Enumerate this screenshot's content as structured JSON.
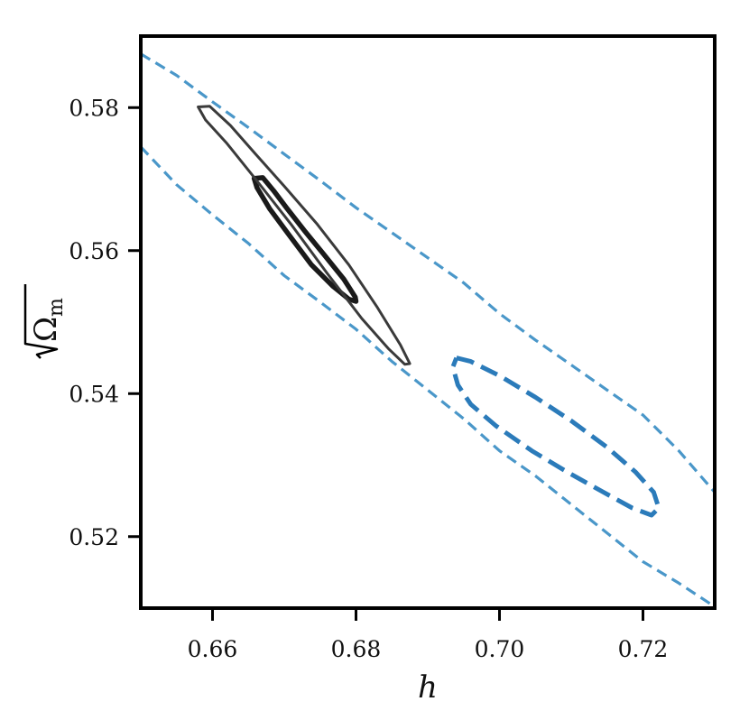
{
  "chart_data": {
    "type": "contour",
    "xlabel": "h",
    "ylabel_symbol": "Ω",
    "ylabel_subscript": "m",
    "xlim": [
      0.65,
      0.73
    ],
    "ylim": [
      0.51,
      0.59
    ],
    "x_ticks": [
      {
        "value": 0.66,
        "label": "0.66"
      },
      {
        "value": 0.68,
        "label": "0.68"
      },
      {
        "value": 0.7,
        "label": "0.70"
      },
      {
        "value": 0.72,
        "label": "0.72"
      }
    ],
    "y_ticks": [
      {
        "value": 0.52,
        "label": "0.52"
      },
      {
        "value": 0.54,
        "label": "0.54"
      },
      {
        "value": 0.56,
        "label": "0.56"
      },
      {
        "value": 0.58,
        "label": "0.58"
      }
    ],
    "grid": false,
    "series": [
      {
        "color": "#1a1a1a",
        "style": "solid",
        "width": 5.5,
        "points": [
          [
            0.6658,
            0.5701
          ],
          [
            0.667,
            0.5702
          ],
          [
            0.6685,
            0.5684
          ],
          [
            0.6703,
            0.566
          ],
          [
            0.6728,
            0.5628
          ],
          [
            0.6755,
            0.5595
          ],
          [
            0.6783,
            0.556
          ],
          [
            0.6799,
            0.5535
          ],
          [
            0.68,
            0.5529
          ],
          [
            0.679,
            0.5532
          ],
          [
            0.6768,
            0.555
          ],
          [
            0.6738,
            0.558
          ],
          [
            0.6708,
            0.562
          ],
          [
            0.668,
            0.5658
          ],
          [
            0.6662,
            0.5688
          ],
          [
            0.6658,
            0.5701
          ]
        ]
      },
      {
        "color": "#3a3a3a",
        "style": "solid",
        "width": 3,
        "points": [
          [
            0.658,
            0.5801
          ],
          [
            0.6596,
            0.5802
          ],
          [
            0.6625,
            0.5775
          ],
          [
            0.666,
            0.5735
          ],
          [
            0.67,
            0.569
          ],
          [
            0.6745,
            0.5638
          ],
          [
            0.679,
            0.558
          ],
          [
            0.683,
            0.552
          ],
          [
            0.6862,
            0.5468
          ],
          [
            0.6875,
            0.5442
          ],
          [
            0.6868,
            0.5441
          ],
          [
            0.6845,
            0.5463
          ],
          [
            0.6808,
            0.5505
          ],
          [
            0.676,
            0.5568
          ],
          [
            0.671,
            0.5636
          ],
          [
            0.666,
            0.57
          ],
          [
            0.662,
            0.575
          ],
          [
            0.659,
            0.5783
          ],
          [
            0.658,
            0.5801
          ]
        ]
      },
      {
        "color": "#2b7bba",
        "style": "dashed",
        "width": 5,
        "points": [
          [
            0.694,
            0.545
          ],
          [
            0.696,
            0.5445
          ],
          [
            0.7,
            0.5425
          ],
          [
            0.705,
            0.5395
          ],
          [
            0.71,
            0.5362
          ],
          [
            0.715,
            0.5325
          ],
          [
            0.719,
            0.529
          ],
          [
            0.7215,
            0.5262
          ],
          [
            0.7222,
            0.524
          ],
          [
            0.7212,
            0.523
          ],
          [
            0.7185,
            0.524
          ],
          [
            0.7145,
            0.5262
          ],
          [
            0.7095,
            0.529
          ],
          [
            0.7045,
            0.532
          ],
          [
            0.6995,
            0.5355
          ],
          [
            0.696,
            0.5385
          ],
          [
            0.6942,
            0.5412
          ],
          [
            0.6935,
            0.5437
          ],
          [
            0.694,
            0.545
          ]
        ]
      },
      {
        "color": "#4a97c9",
        "style": "dashed",
        "width": 3.2,
        "points": [
          [
            0.65,
            0.5875
          ],
          [
            0.655,
            0.5845
          ],
          [
            0.66,
            0.5808
          ],
          [
            0.665,
            0.5772
          ],
          [
            0.67,
            0.5735
          ],
          [
            0.675,
            0.5698
          ],
          [
            0.68,
            0.566
          ],
          [
            0.685,
            0.5625
          ],
          [
            0.69,
            0.559
          ],
          [
            0.695,
            0.5555
          ],
          [
            0.7,
            0.5512
          ],
          [
            0.705,
            0.5475
          ],
          [
            0.71,
            0.544
          ],
          [
            0.715,
            0.5405
          ],
          [
            0.72,
            0.537
          ],
          [
            0.725,
            0.532
          ],
          [
            0.73,
            0.5262
          ]
        ]
      },
      {
        "color": "#4a97c9",
        "style": "dashed",
        "width": 3.2,
        "points": [
          [
            0.65,
            0.5745
          ],
          [
            0.655,
            0.5692
          ],
          [
            0.66,
            0.565
          ],
          [
            0.665,
            0.561
          ],
          [
            0.67,
            0.5565
          ],
          [
            0.675,
            0.5528
          ],
          [
            0.68,
            0.549
          ],
          [
            0.685,
            0.5445
          ],
          [
            0.69,
            0.5405
          ],
          [
            0.695,
            0.5365
          ],
          [
            0.7,
            0.532
          ],
          [
            0.705,
            0.5285
          ],
          [
            0.71,
            0.5245
          ],
          [
            0.715,
            0.5205
          ],
          [
            0.72,
            0.5165
          ],
          [
            0.725,
            0.5135
          ],
          [
            0.73,
            0.5102
          ]
        ]
      }
    ]
  }
}
